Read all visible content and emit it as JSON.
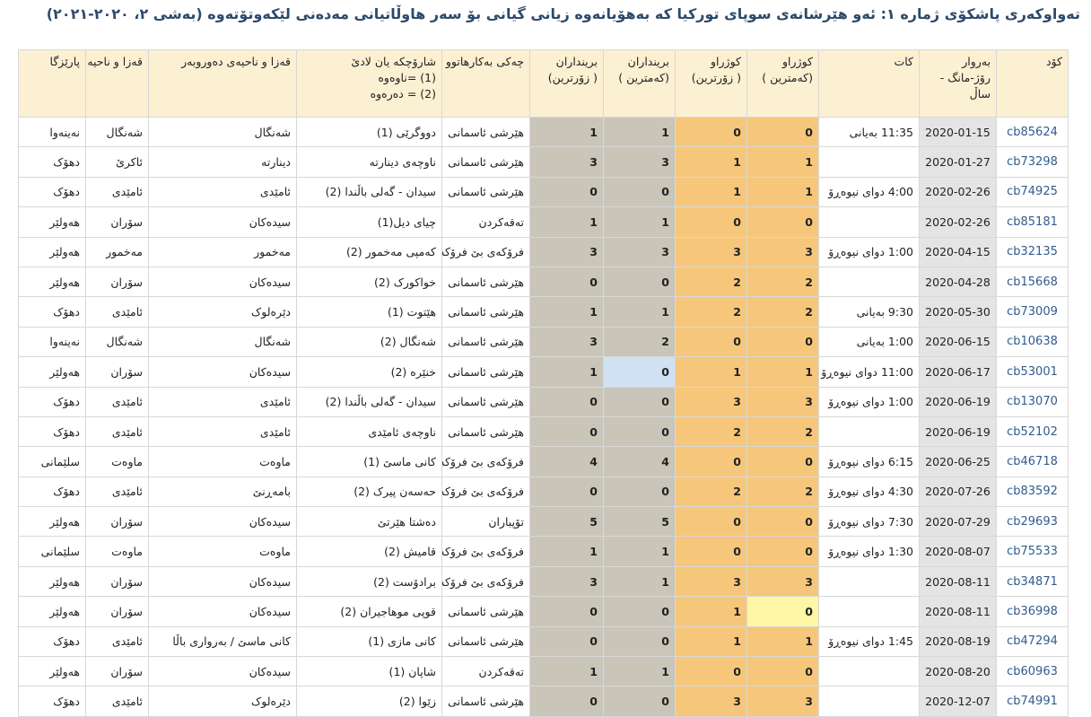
{
  "header": {
    "title": "تەواوکەری پاشکۆی ژمارە ١: ئەو هێرشانەی سوپای تورکیا کە بەهۆیانەوە زیانی گیانی بۆ سەر هاوڵاتیانی مەدەنی لێکەوتۆتەوە (بەشی ٢، ٢٠٢٠-٢٠٢١)"
  },
  "table": {
    "columns": [
      [
        "کۆد"
      ],
      [
        "بەروار",
        "رۆژ-مانگ -",
        "ساڵ"
      ],
      [
        "کات"
      ],
      [
        "کوژراو",
        "(کەمترین )"
      ],
      [
        "کوژراو",
        "( زۆرترین)"
      ],
      [
        "برینداران",
        "(کەمترین )"
      ],
      [
        "برینداران",
        "( زۆرترین)"
      ],
      [
        "چەکی بەکارهاتوو"
      ],
      [
        "شارۆچکە یان لادێ",
        "(1) =ناوەوە",
        "(2) = دەرەوە"
      ],
      [
        "قەزا و ناحیەی دەوروبەر"
      ],
      [
        "قەزا و ناحیە"
      ],
      [
        "پارێزگا"
      ]
    ],
    "rows": [
      [
        "cb85624",
        "2020-01-15",
        "11:35 بەیانی",
        0,
        0,
        1,
        1,
        "هێرشی ئاسمانی",
        "دووگرێی (1)",
        "شەنگال",
        "شەنگال",
        "نەینەوا"
      ],
      [
        "cb73298",
        "2020-01-27",
        null,
        1,
        1,
        3,
        3,
        "هێرشی ئاسمانی",
        "ناوچەی دینارتە",
        "دینارتە",
        "ئاکرێ",
        "دهۆک"
      ],
      [
        "cb74925",
        "2020-02-26",
        "4:00 دوای نیوەڕۆ",
        1,
        1,
        0,
        0,
        "هێرشی ئاسمانی",
        "سیدان - گەلی باڵندا (2)",
        "ئامێدی",
        "ئامێدی",
        "دهۆک"
      ],
      [
        "cb85181",
        "2020-02-26",
        null,
        0,
        0,
        1,
        1,
        "تەقەکردن",
        "چیای دیل(1)",
        "سیدەکان",
        "سۆران",
        "هەولێر"
      ],
      [
        "cb32135",
        "2020-04-15",
        "1:00 دوای نیوەڕۆ",
        3,
        3,
        3,
        3,
        "فرۆکەی بێ فرۆکەوان",
        "کەمپی مەخمور (2)",
        "مەخمور",
        "مەخمور",
        "هەولێر"
      ],
      [
        "cb15668",
        "2020-04-28",
        null,
        2,
        2,
        0,
        0,
        "هێرشی ئاسمانی",
        "خواکورک (2)",
        "سیدەکان",
        "سۆران",
        "هەولێر"
      ],
      [
        "cb73009",
        "2020-05-30",
        "9:30 بەیانی",
        2,
        2,
        1,
        1,
        "هێرشی ئاسمانی",
        "هێتوت (1)",
        "دێرەلوک",
        "ئامێدی",
        "دهۆک"
      ],
      [
        "cb10638",
        "2020-06-15",
        "1:00 بەیانی",
        0,
        0,
        2,
        3,
        "هێرشی ئاسمانی",
        "شەنگال (2)",
        "شەنگال",
        "شەنگال",
        "نەینەوا"
      ],
      [
        "cb53001",
        "2020-06-17",
        "11:00 دوای نیوەڕۆ",
        1,
        1,
        0,
        1,
        "هێرشی ئاسمانی",
        "خنێرە (2)",
        "سیدەکان",
        "سۆران",
        "هەولێر"
      ],
      [
        "cb13070",
        "2020-06-19",
        "1:00 دوای نیوەڕۆ",
        3,
        3,
        0,
        0,
        "هێرشی ئاسمانی",
        "سیدان - گەلی باڵندا (2)",
        "ئامێدی",
        "ئامێدی",
        "دهۆک"
      ],
      [
        "cb52102",
        "2020-06-19",
        null,
        2,
        2,
        0,
        0,
        "هێرشی ئاسمانی",
        "ناوچەی ئامێدی",
        "ئامێدی",
        "ئامێدی",
        "دهۆک"
      ],
      [
        "cb46718",
        "2020-06-25",
        "6:15 دوای نیوەڕۆ",
        0,
        0,
        4,
        4,
        "فرۆکەی بێ فرۆکەوان",
        "کانی ماسێ (1)",
        "ماوەت",
        "ماوەت",
        "سلێمانی"
      ],
      [
        "cb83592",
        "2020-07-26",
        "4:30 دوای نیوەڕۆ",
        2,
        2,
        0,
        0,
        "فرۆکەی بێ فرۆکەوان",
        "حەسەن پیرک (2)",
        "بامەڕنێ",
        "ئامێدی",
        "دهۆک"
      ],
      [
        "cb29693",
        "2020-07-29",
        "7:30 دوای نیوەڕۆ",
        0,
        0,
        5,
        5,
        "تۆپباران",
        "دەشتا هێرتێ",
        "سیدەکان",
        "سۆران",
        "هەولێر"
      ],
      [
        "cb75533",
        "2020-08-07",
        "1:30 دوای نیوەڕۆ",
        0,
        0,
        1,
        1,
        "فرۆکەی بێ فرۆکەوان",
        "قامیش (2)",
        "ماوەت",
        "ماوەت",
        "سلێمانی"
      ],
      [
        "cb34871",
        "2020-08-11",
        null,
        3,
        3,
        1,
        3,
        "فرۆکەی بێ فرۆکەوان",
        "برادۆست (2)",
        "سیدەکان",
        "سۆران",
        "هەولێر"
      ],
      [
        "cb36998",
        "2020-08-11",
        null,
        0,
        1,
        0,
        0,
        "هێرشی ئاسمانی",
        "قوپی موهاجیران (2)",
        "سیدەکان",
        "سۆران",
        "هەولێر"
      ],
      [
        "cb47294",
        "2020-08-19",
        "1:45 دوای نیوەڕۆ",
        1,
        1,
        0,
        0,
        "هێرشی ئاسمانی",
        "کانی مازی (1)",
        "کانی ماسێ / بەرواری باڵا",
        "ئامێدی",
        "دهۆک"
      ],
      [
        "cb60963",
        "2020-08-20",
        null,
        0,
        0,
        1,
        1,
        "تەقەکردن",
        "شاپان (1)",
        "سیدەکان",
        "سۆران",
        "هەولێر"
      ],
      [
        "cb74991",
        "2020-12-07",
        null,
        3,
        3,
        0,
        0,
        "هێرشی ئاسمانی",
        "زێوا (2)",
        "دێرەلوک",
        "ئامێدی",
        "دهۆک"
      ]
    ]
  }
}
